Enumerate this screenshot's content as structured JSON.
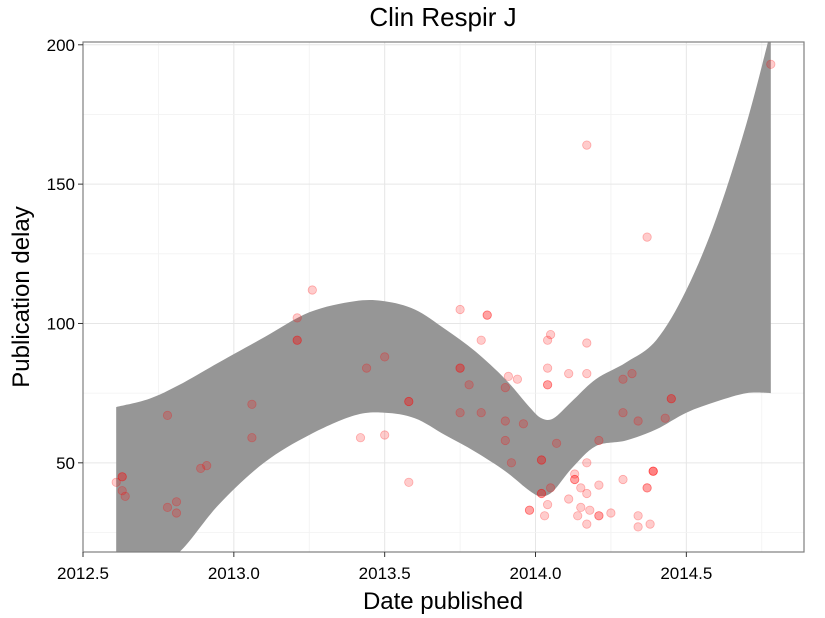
{
  "chart_data": {
    "type": "scatter",
    "title": "Clin Respir J",
    "xlabel": "Date published",
    "ylabel": "Publication delay",
    "xlim": [
      2012.5,
      2014.89
    ],
    "ylim": [
      18,
      201
    ],
    "x_ticks": [
      2012.5,
      2013.0,
      2013.5,
      2014.0,
      2014.5
    ],
    "x_tick_labels": [
      "2012.5",
      "2013.0",
      "2013.5",
      "2014.0",
      "2014.5"
    ],
    "y_ticks": [
      50,
      100,
      150,
      200
    ],
    "y_tick_labels": [
      "50",
      "100",
      "150",
      "200"
    ],
    "grid": true,
    "point_color": "#ff0000",
    "band_color": "#969696",
    "points": [
      {
        "x": 2012.61,
        "y": 43
      },
      {
        "x": 2012.63,
        "y": 45
      },
      {
        "x": 2012.63,
        "y": 45
      },
      {
        "x": 2012.63,
        "y": 40
      },
      {
        "x": 2012.64,
        "y": 38
      },
      {
        "x": 2012.78,
        "y": 67
      },
      {
        "x": 2012.78,
        "y": 34
      },
      {
        "x": 2012.81,
        "y": 36
      },
      {
        "x": 2012.81,
        "y": 32
      },
      {
        "x": 2012.89,
        "y": 48
      },
      {
        "x": 2012.91,
        "y": 49
      },
      {
        "x": 2013.06,
        "y": 71
      },
      {
        "x": 2013.06,
        "y": 59
      },
      {
        "x": 2013.21,
        "y": 102
      },
      {
        "x": 2013.21,
        "y": 94
      },
      {
        "x": 2013.21,
        "y": 94
      },
      {
        "x": 2013.26,
        "y": 112
      },
      {
        "x": 2013.42,
        "y": 59
      },
      {
        "x": 2013.44,
        "y": 84
      },
      {
        "x": 2013.5,
        "y": 88
      },
      {
        "x": 2013.5,
        "y": 60
      },
      {
        "x": 2013.58,
        "y": 72
      },
      {
        "x": 2013.58,
        "y": 72
      },
      {
        "x": 2013.58,
        "y": 43
      },
      {
        "x": 2013.75,
        "y": 105
      },
      {
        "x": 2013.75,
        "y": 84
      },
      {
        "x": 2013.75,
        "y": 84
      },
      {
        "x": 2013.75,
        "y": 68
      },
      {
        "x": 2013.78,
        "y": 78
      },
      {
        "x": 2013.82,
        "y": 94
      },
      {
        "x": 2013.82,
        "y": 68
      },
      {
        "x": 2013.84,
        "y": 103
      },
      {
        "x": 2013.84,
        "y": 103
      },
      {
        "x": 2013.9,
        "y": 77
      },
      {
        "x": 2013.9,
        "y": 65
      },
      {
        "x": 2013.9,
        "y": 58
      },
      {
        "x": 2013.91,
        "y": 81
      },
      {
        "x": 2013.92,
        "y": 50
      },
      {
        "x": 2013.94,
        "y": 80
      },
      {
        "x": 2013.96,
        "y": 64
      },
      {
        "x": 2013.98,
        "y": 33
      },
      {
        "x": 2013.98,
        "y": 33
      },
      {
        "x": 2014.02,
        "y": 51
      },
      {
        "x": 2014.02,
        "y": 51
      },
      {
        "x": 2014.02,
        "y": 39
      },
      {
        "x": 2014.02,
        "y": 39
      },
      {
        "x": 2014.03,
        "y": 31
      },
      {
        "x": 2014.04,
        "y": 94
      },
      {
        "x": 2014.04,
        "y": 84
      },
      {
        "x": 2014.04,
        "y": 78
      },
      {
        "x": 2014.04,
        "y": 78
      },
      {
        "x": 2014.04,
        "y": 35
      },
      {
        "x": 2014.05,
        "y": 96
      },
      {
        "x": 2014.05,
        "y": 41
      },
      {
        "x": 2014.07,
        "y": 57
      },
      {
        "x": 2014.11,
        "y": 82
      },
      {
        "x": 2014.11,
        "y": 37
      },
      {
        "x": 2014.13,
        "y": 46
      },
      {
        "x": 2014.13,
        "y": 44
      },
      {
        "x": 2014.13,
        "y": 44
      },
      {
        "x": 2014.14,
        "y": 31
      },
      {
        "x": 2014.15,
        "y": 41
      },
      {
        "x": 2014.15,
        "y": 34
      },
      {
        "x": 2014.17,
        "y": 164
      },
      {
        "x": 2014.17,
        "y": 93
      },
      {
        "x": 2014.17,
        "y": 82
      },
      {
        "x": 2014.17,
        "y": 50
      },
      {
        "x": 2014.17,
        "y": 39
      },
      {
        "x": 2014.17,
        "y": 28
      },
      {
        "x": 2014.18,
        "y": 33
      },
      {
        "x": 2014.21,
        "y": 58
      },
      {
        "x": 2014.21,
        "y": 42
      },
      {
        "x": 2014.21,
        "y": 31
      },
      {
        "x": 2014.21,
        "y": 31
      },
      {
        "x": 2014.25,
        "y": 32
      },
      {
        "x": 2014.29,
        "y": 80
      },
      {
        "x": 2014.29,
        "y": 68
      },
      {
        "x": 2014.29,
        "y": 44
      },
      {
        "x": 2014.32,
        "y": 82
      },
      {
        "x": 2014.34,
        "y": 65
      },
      {
        "x": 2014.34,
        "y": 31
      },
      {
        "x": 2014.34,
        "y": 27
      },
      {
        "x": 2014.37,
        "y": 131
      },
      {
        "x": 2014.37,
        "y": 41
      },
      {
        "x": 2014.37,
        "y": 41
      },
      {
        "x": 2014.38,
        "y": 28
      },
      {
        "x": 2014.39,
        "y": 47
      },
      {
        "x": 2014.39,
        "y": 47
      },
      {
        "x": 2014.39,
        "y": 47
      },
      {
        "x": 2014.43,
        "y": 66
      },
      {
        "x": 2014.45,
        "y": 73
      },
      {
        "x": 2014.45,
        "y": 73
      },
      {
        "x": 2014.78,
        "y": 193
      }
    ],
    "confidence_band": {
      "x": [
        2012.61,
        2012.72,
        2012.82,
        2012.95,
        2013.1,
        2013.25,
        2013.4,
        2013.5,
        2013.6,
        2013.7,
        2013.8,
        2013.9,
        2013.98,
        2014.02,
        2014.06,
        2014.12,
        2014.2,
        2014.3,
        2014.4,
        2014.5,
        2014.6,
        2014.7,
        2014.78
      ],
      "upper": [
        70,
        73,
        78,
        86,
        95,
        104,
        108,
        108,
        105,
        98,
        90,
        80,
        70,
        66,
        66,
        72,
        80,
        86,
        94,
        112,
        138,
        172,
        205
      ],
      "lower": [
        12,
        12,
        18,
        35,
        50,
        60,
        67,
        68,
        66,
        60,
        54,
        47,
        40,
        38,
        40,
        48,
        56,
        58,
        62,
        68,
        72,
        75,
        75
      ]
    }
  }
}
